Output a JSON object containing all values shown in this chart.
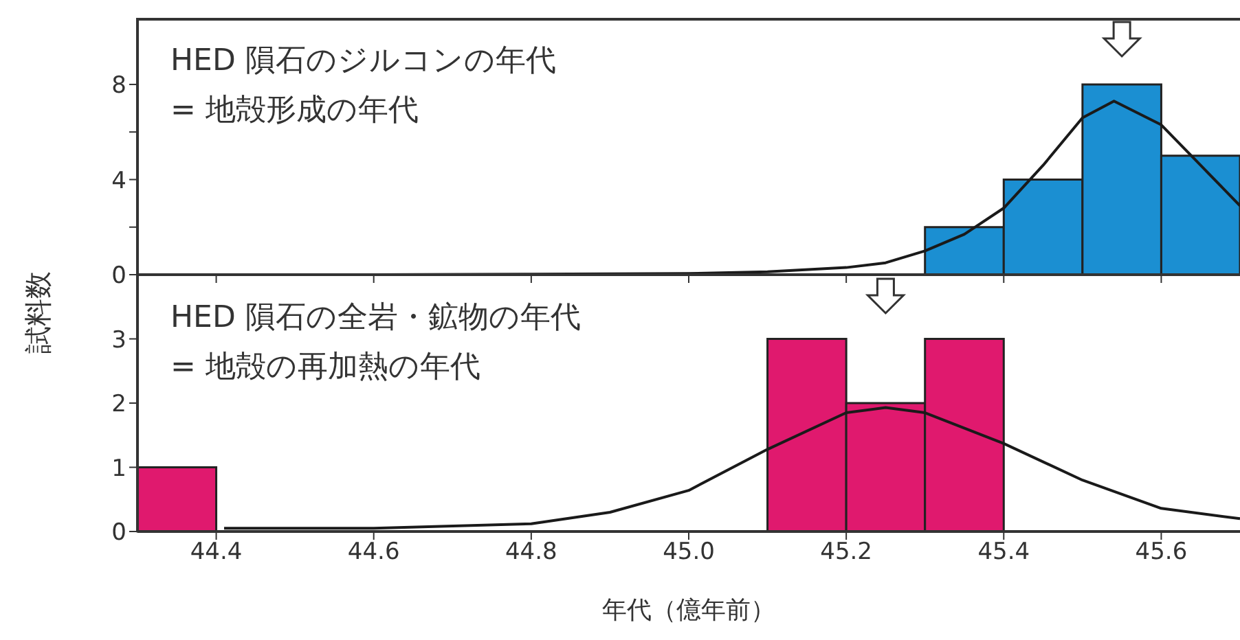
{
  "chart_data": [
    {
      "type": "histogram",
      "bins": [
        45.3,
        45.4,
        45.5,
        45.6,
        45.7
      ],
      "values": [
        2,
        4,
        8,
        5
      ],
      "color": "#1b8fd2",
      "xlim": [
        44.3,
        45.7
      ],
      "xticks": [
        44.4,
        44.6,
        44.8,
        45,
        45.2,
        45.4,
        45.6
      ],
      "ylim": [
        0,
        10.8
      ],
      "yticks": [
        0,
        {
          "value": 2,
          "label": null
        },
        4,
        {
          "value": 6,
          "label": null
        },
        8
      ],
      "tick_labels": "y",
      "ylabel": "試料数",
      "annotations": [
        "HED 隕石のジルコンの年代",
        "= 地殻形成の年代"
      ],
      "series": [
        {
          "type": "line",
          "color": "#1a1a1a",
          "x": [
            44.4,
            44.6,
            44.8,
            45.0,
            45.1,
            45.2,
            45.25,
            45.3,
            45.35,
            45.4,
            45.45,
            45.5,
            45.54,
            45.6,
            45.65,
            45.7
          ],
          "values": [
            0,
            0,
            0.02,
            0.05,
            0.12,
            0.3,
            0.5,
            1.0,
            1.7,
            2.8,
            4.6,
            6.6,
            7.3,
            6.3,
            4.6,
            2.9
          ]
        }
      ]
    },
    {
      "type": "histogram",
      "bins": [
        44.3,
        44.4,
        44.5,
        44.6,
        44.7,
        44.8,
        44.9,
        45.0,
        45.1,
        45.2,
        45.3,
        45.4
      ],
      "values": [
        1,
        0,
        0,
        0,
        0,
        0,
        0,
        0,
        3,
        2,
        3
      ],
      "color": "#e0196e",
      "xlim": [
        44.3,
        45.7
      ],
      "xticks": [
        44.4,
        44.6,
        44.8,
        {
          "value": 45,
          "label": "45.0"
        },
        45.2,
        45.4,
        45.6
      ],
      "ylim": [
        0,
        4
      ],
      "yticks": [
        0,
        1,
        2,
        3
      ],
      "xlabel": "年代（億年前）",
      "annotations": [
        "HED 隕石の全岩・鉱物の年代",
        "= 地殻の再加熱の年代"
      ],
      "series": [
        {
          "type": "line",
          "color": "#1a1a1a",
          "x": [
            44.41,
            44.6,
            44.8,
            44.9,
            45.0,
            45.1,
            45.2,
            45.25,
            45.3,
            45.4,
            45.5,
            45.6,
            45.7
          ],
          "values": [
            0.05,
            0.05,
            0.12,
            0.3,
            0.64,
            1.28,
            1.85,
            1.93,
            1.85,
            1.37,
            0.8,
            0.36,
            0.2
          ]
        }
      ]
    }
  ]
}
